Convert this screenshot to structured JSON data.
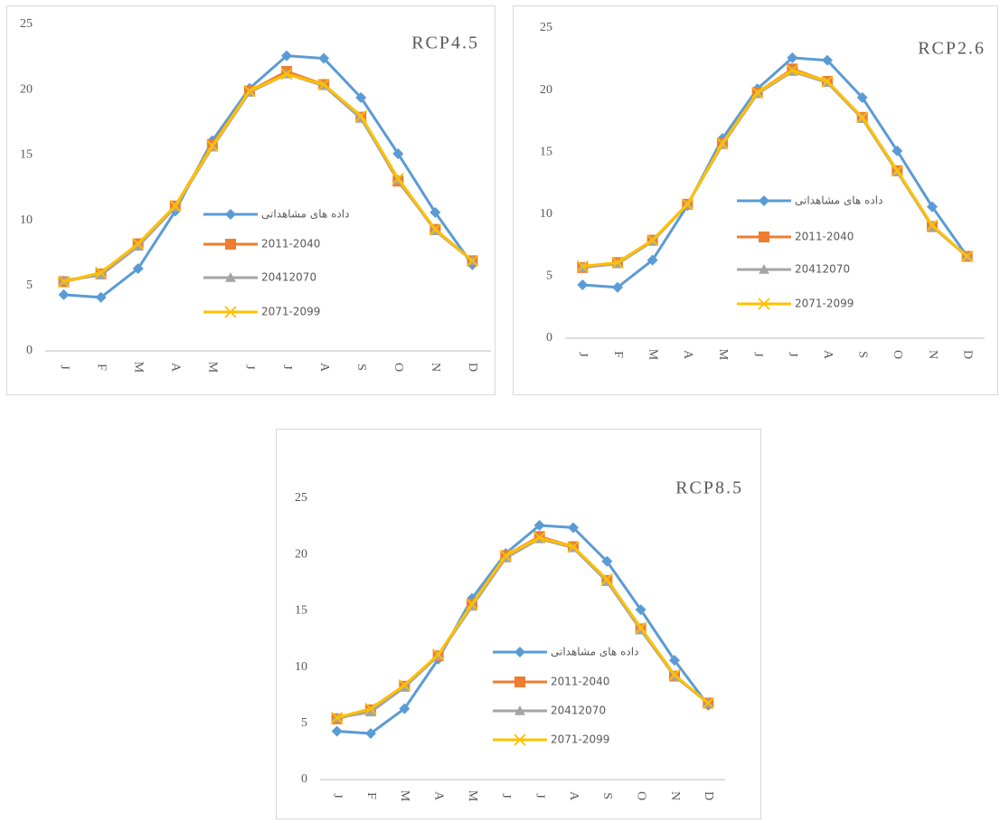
{
  "chart_data": [
    {
      "type": "line",
      "title": "RCP4.5",
      "categories": [
        "J",
        "F",
        "M",
        "A",
        "M",
        "J",
        "J",
        "A",
        "S",
        "O",
        "N",
        "D"
      ],
      "ylim": [
        0,
        25
      ],
      "yticks": [
        0,
        5,
        10,
        15,
        20,
        25
      ],
      "grid": false,
      "series": [
        {
          "name": "داده های مشاهداتی",
          "color": "#5b9bd5",
          "marker": "diamond",
          "values": [
            4.3,
            4.1,
            6.3,
            10.7,
            16.1,
            20.1,
            22.6,
            22.4,
            19.4,
            15.1,
            10.6,
            6.6
          ]
        },
        {
          "name": "2011-2040",
          "color": "#ed7d31",
          "marker": "square",
          "values": [
            5.3,
            5.9,
            8.2,
            11.1,
            15.8,
            19.9,
            21.4,
            20.4,
            17.9,
            13.0,
            9.3,
            6.9
          ]
        },
        {
          "name": "20412070",
          "color": "#a5a5a5",
          "marker": "triangle",
          "values": [
            5.4,
            5.8,
            8.0,
            11.0,
            15.6,
            19.8,
            21.2,
            20.3,
            17.8,
            13.1,
            9.2,
            6.9
          ]
        },
        {
          "name": "2071-2099",
          "color": "#ffc000",
          "marker": "x",
          "values": [
            5.3,
            6.0,
            8.2,
            11.1,
            15.7,
            19.9,
            21.2,
            20.4,
            18.0,
            13.2,
            9.3,
            6.9
          ]
        }
      ]
    },
    {
      "type": "line",
      "title": "RCP2.6",
      "categories": [
        "J",
        "F",
        "M",
        "A",
        "M",
        "J",
        "J",
        "A",
        "S",
        "O",
        "N",
        "D"
      ],
      "ylim": [
        0,
        25
      ],
      "yticks": [
        0,
        5,
        10,
        15,
        20,
        25
      ],
      "grid": false,
      "series": [
        {
          "name": "داده های مشاهداتی",
          "color": "#5b9bd5",
          "marker": "diamond",
          "values": [
            4.3,
            4.1,
            6.3,
            10.7,
            16.1,
            20.1,
            22.6,
            22.4,
            19.4,
            15.1,
            10.6,
            6.6
          ]
        },
        {
          "name": "2011-2040",
          "color": "#ed7d31",
          "marker": "square",
          "values": [
            5.7,
            6.1,
            7.9,
            10.8,
            15.7,
            19.8,
            21.7,
            20.7,
            17.8,
            13.5,
            9.0,
            6.6
          ]
        },
        {
          "name": "20412070",
          "color": "#a5a5a5",
          "marker": "triangle",
          "values": [
            5.7,
            6.0,
            7.8,
            10.8,
            15.6,
            19.7,
            21.5,
            20.6,
            17.7,
            13.4,
            9.0,
            6.6
          ]
        },
        {
          "name": "2071-2099",
          "color": "#ffc000",
          "marker": "x",
          "values": [
            5.8,
            6.1,
            7.9,
            10.8,
            15.7,
            19.8,
            21.6,
            20.7,
            17.8,
            13.5,
            9.1,
            6.6
          ]
        }
      ]
    },
    {
      "type": "line",
      "title": "RCP8.5",
      "categories": [
        "J",
        "F",
        "M",
        "A",
        "M",
        "J",
        "J",
        "A",
        "S",
        "O",
        "N",
        "D"
      ],
      "ylim": [
        0,
        25
      ],
      "yticks": [
        0,
        5,
        10,
        15,
        20,
        25
      ],
      "grid": false,
      "series": [
        {
          "name": "داده های مشاهداتی",
          "color": "#5b9bd5",
          "marker": "diamond",
          "values": [
            4.3,
            4.1,
            6.3,
            10.7,
            16.1,
            20.1,
            22.6,
            22.4,
            19.4,
            15.1,
            10.6,
            6.6
          ]
        },
        {
          "name": "2011-2040",
          "color": "#ed7d31",
          "marker": "square",
          "values": [
            5.4,
            6.2,
            8.3,
            11.0,
            15.6,
            19.9,
            21.6,
            20.7,
            17.7,
            13.4,
            9.2,
            6.8
          ]
        },
        {
          "name": "20412070",
          "color": "#a5a5a5",
          "marker": "triangle",
          "values": [
            5.5,
            6.0,
            8.2,
            11.0,
            15.4,
            19.7,
            21.4,
            20.6,
            17.6,
            13.3,
            9.2,
            6.8
          ]
        },
        {
          "name": "2071-2099",
          "color": "#ffc000",
          "marker": "x",
          "values": [
            5.5,
            6.3,
            8.4,
            11.1,
            15.6,
            19.9,
            21.5,
            20.7,
            17.8,
            13.5,
            9.3,
            6.8
          ]
        }
      ]
    }
  ]
}
